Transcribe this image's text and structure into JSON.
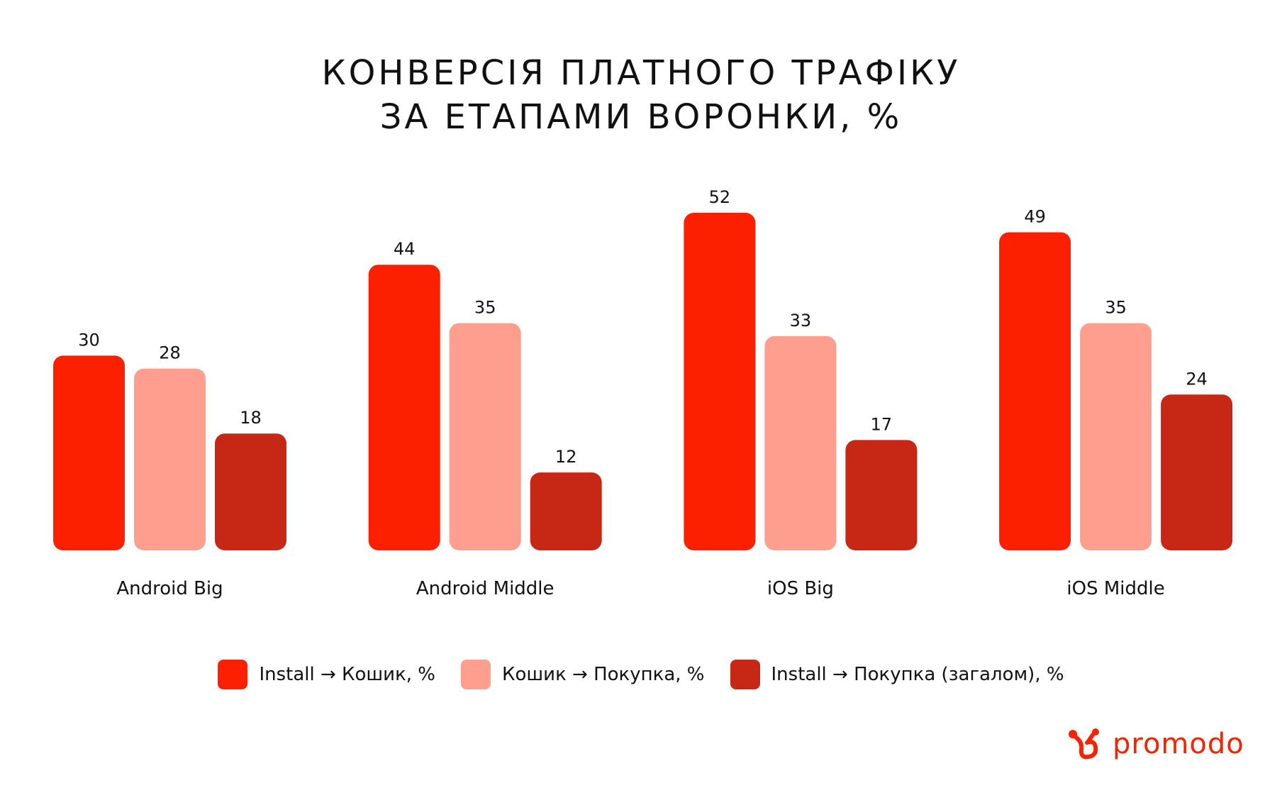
{
  "chart_data": {
    "type": "bar",
    "title_lines": [
      "КОНВЕРСІЯ ПЛАТНОГО ТРАФІКУ",
      "ЗА ЕТАПАМИ ВОРОНКИ, %"
    ],
    "categories": [
      "Android Big",
      "Android Middle",
      "iOS Big",
      "iOS Middle"
    ],
    "series": [
      {
        "name": "Install → Кошик, %",
        "values": [
          30,
          44,
          52,
          49
        ],
        "color": "#fc2000"
      },
      {
        "name": "Кошик → Покупка, %",
        "values": [
          28,
          35,
          33,
          35
        ],
        "color": "#fe9e8f"
      },
      {
        "name": "Install → Покупка (загалом), %",
        "values": [
          18,
          12,
          17,
          24
        ],
        "color": "#c72815"
      }
    ],
    "ylim": [
      0,
      52
    ],
    "grid": false,
    "legend": "bottom",
    "data_labels": true
  },
  "branding": {
    "logo_text": "promodo",
    "logo_icon": "promodo-logo-icon",
    "color": "#f72200"
  }
}
